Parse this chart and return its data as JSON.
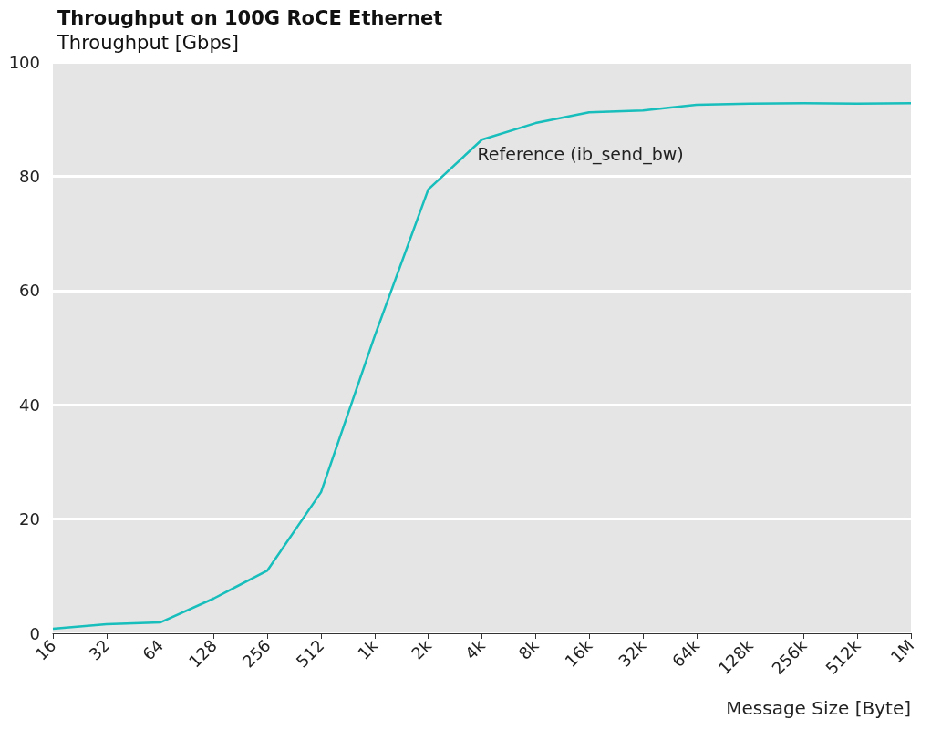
{
  "chart_data": {
    "type": "line",
    "title": "Throughput on 100G RoCE Ethernet",
    "ylabel": "Throughput [Gbps]",
    "xlabel": "Message Size [Byte]",
    "categories": [
      "16",
      "32",
      "64",
      "128",
      "256",
      "512",
      "1k",
      "2k",
      "4k",
      "8k",
      "16k",
      "32k",
      "64k",
      "128k",
      "256k",
      "512k",
      "1M"
    ],
    "series": [
      {
        "color": "#17bebb",
        "values": [
          0.8,
          1.6,
          1.9,
          6.1,
          11.0,
          24.7,
          52,
          77.7,
          86.4,
          89.3,
          91.2,
          91.5,
          92.5,
          92.7,
          92.8,
          92.7,
          92.8
        ]
      }
    ],
    "annotations": [
      {
        "text": "Reference (ib_send_bw)",
        "x": "4k",
        "y": 86.4
      }
    ],
    "ylim": [
      0,
      100
    ],
    "yticks": [
      0,
      20,
      40,
      60,
      80,
      100
    ],
    "grid": "y",
    "marker": "none",
    "line_style": "solid"
  }
}
